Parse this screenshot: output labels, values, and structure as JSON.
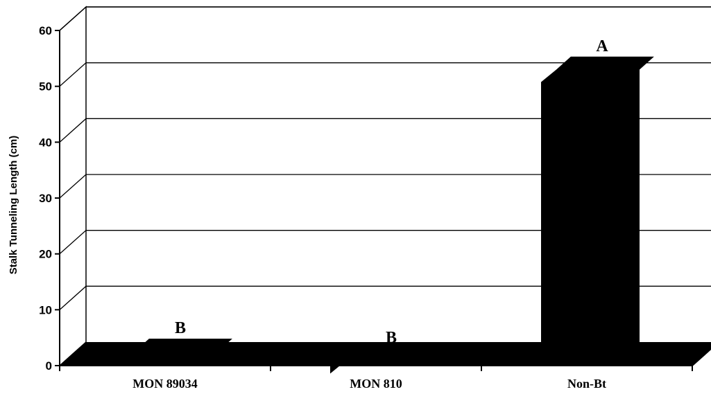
{
  "chart_data": {
    "type": "bar",
    "style": "3d",
    "ylabel": "Stalk Tunneling Length (cm)",
    "xlabel": "",
    "ylim": [
      0,
      60
    ],
    "yticks": [
      0,
      10,
      20,
      30,
      40,
      50,
      60
    ],
    "grid": true,
    "categories": [
      "MON 89034",
      "MON 810",
      "Non-Bt"
    ],
    "values": [
      2.5,
      0.8,
      53
    ],
    "significance_letters": [
      "B",
      "B",
      "A"
    ],
    "bar_color": "#000000"
  }
}
